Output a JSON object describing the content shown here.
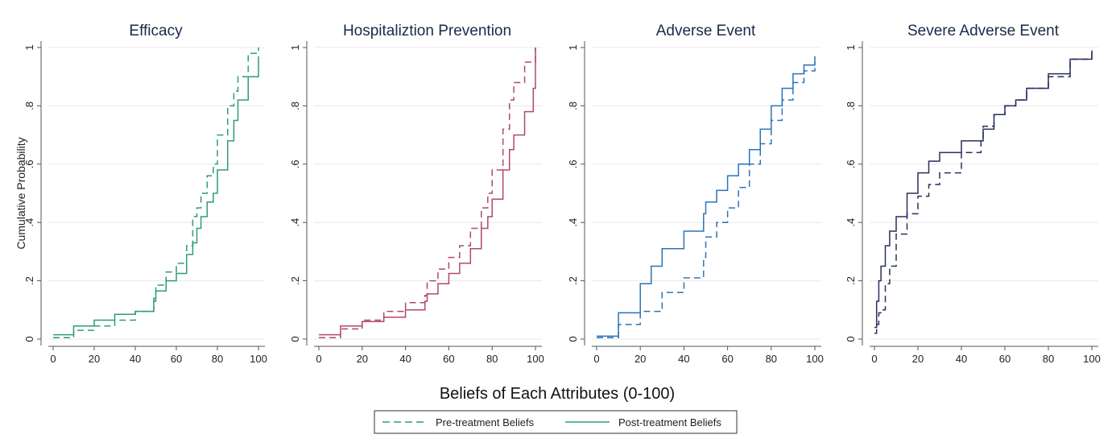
{
  "xlabel": "Beliefs of Each Attributes (0-100)",
  "ylabel": "Cumulative Probability",
  "legend": {
    "placement": "bottom-center",
    "entries": [
      {
        "name": "Pre-treatment Beliefs",
        "style": "dashed"
      },
      {
        "name": "Post-treatment Beliefs",
        "style": "solid"
      }
    ]
  },
  "chart_data": [
    {
      "type": "line",
      "title": "Efficacy",
      "color": "#2e9e72",
      "xlim": [
        0,
        100
      ],
      "ylim": [
        0,
        1
      ],
      "xticks": [
        "0",
        "20",
        "40",
        "60",
        "80",
        "100"
      ],
      "yticks": [
        "0",
        ".2",
        ".4",
        ".6",
        ".8",
        "1"
      ],
      "series": [
        {
          "name": "Pre-treatment Beliefs",
          "style": "dashed",
          "x": [
            0,
            10,
            20,
            30,
            40,
            49,
            50,
            55,
            60,
            65,
            68,
            70,
            72,
            75,
            78,
            80,
            85,
            88,
            90,
            95,
            100
          ],
          "y": [
            0.005,
            0.03,
            0.045,
            0.065,
            0.095,
            0.13,
            0.185,
            0.23,
            0.26,
            0.32,
            0.42,
            0.45,
            0.5,
            0.56,
            0.6,
            0.7,
            0.8,
            0.85,
            0.9,
            0.98,
            1.0
          ]
        },
        {
          "name": "Post-treatment Beliefs",
          "style": "solid",
          "x": [
            0,
            10,
            20,
            30,
            40,
            49,
            50,
            55,
            60,
            65,
            68,
            70,
            72,
            75,
            78,
            80,
            85,
            88,
            90,
            95,
            100
          ],
          "y": [
            0.015,
            0.045,
            0.065,
            0.085,
            0.095,
            0.14,
            0.165,
            0.2,
            0.225,
            0.29,
            0.33,
            0.38,
            0.42,
            0.47,
            0.5,
            0.58,
            0.68,
            0.75,
            0.82,
            0.9,
            0.97
          ]
        }
      ]
    },
    {
      "type": "line",
      "title": "Hospitaliztion Prevention",
      "color": "#b0486a",
      "xlim": [
        0,
        100
      ],
      "ylim": [
        0,
        1
      ],
      "xticks": [
        "0",
        "20",
        "40",
        "60",
        "80",
        "100"
      ],
      "yticks": [
        "0",
        ".2",
        ".4",
        ".6",
        ".8",
        "1"
      ],
      "series": [
        {
          "name": "Pre-treatment Beliefs",
          "style": "dashed",
          "x": [
            0,
            10,
            20,
            30,
            40,
            49,
            50,
            55,
            60,
            65,
            70,
            75,
            78,
            80,
            85,
            88,
            90,
            95,
            100
          ],
          "y": [
            0.005,
            0.035,
            0.065,
            0.095,
            0.125,
            0.15,
            0.2,
            0.24,
            0.28,
            0.32,
            0.38,
            0.45,
            0.5,
            0.58,
            0.72,
            0.82,
            0.88,
            0.95,
            1.0
          ]
        },
        {
          "name": "Post-treatment Beliefs",
          "style": "solid",
          "x": [
            0,
            10,
            20,
            30,
            40,
            49,
            50,
            55,
            60,
            65,
            70,
            75,
            78,
            80,
            85,
            88,
            90,
            95,
            99,
            100
          ],
          "y": [
            0.015,
            0.045,
            0.06,
            0.075,
            0.1,
            0.13,
            0.155,
            0.19,
            0.225,
            0.26,
            0.31,
            0.38,
            0.42,
            0.48,
            0.58,
            0.65,
            0.7,
            0.78,
            0.86,
            1.0
          ]
        }
      ]
    },
    {
      "type": "line",
      "title": "Adverse Event",
      "color": "#2a73b8",
      "xlim": [
        0,
        100
      ],
      "ylim": [
        0,
        1
      ],
      "xticks": [
        "0",
        "20",
        "40",
        "60",
        "80",
        "100"
      ],
      "yticks": [
        "0",
        ".2",
        ".4",
        ".6",
        ".8",
        "1"
      ],
      "series": [
        {
          "name": "Pre-treatment Beliefs",
          "style": "dashed",
          "x": [
            0,
            10,
            20,
            30,
            40,
            49,
            50,
            55,
            60,
            65,
            70,
            75,
            80,
            85,
            90,
            95,
            100
          ],
          "y": [
            0.005,
            0.05,
            0.095,
            0.16,
            0.21,
            0.28,
            0.35,
            0.4,
            0.45,
            0.52,
            0.6,
            0.67,
            0.75,
            0.82,
            0.88,
            0.92,
            0.95
          ]
        },
        {
          "name": "Post-treatment Beliefs",
          "style": "solid",
          "x": [
            0,
            10,
            20,
            25,
            30,
            40,
            49,
            50,
            55,
            60,
            65,
            70,
            75,
            80,
            85,
            90,
            95,
            100
          ],
          "y": [
            0.01,
            0.09,
            0.19,
            0.25,
            0.31,
            0.37,
            0.43,
            0.47,
            0.51,
            0.56,
            0.6,
            0.65,
            0.72,
            0.8,
            0.86,
            0.91,
            0.94,
            0.97
          ]
        }
      ]
    },
    {
      "type": "line",
      "title": "Severe Adverse Event",
      "color": "#2a2f5e",
      "xlim": [
        0,
        100
      ],
      "ylim": [
        0,
        1
      ],
      "xticks": [
        "0",
        "20",
        "40",
        "60",
        "80",
        "100"
      ],
      "yticks": [
        "0",
        ".2",
        ".4",
        ".6",
        ".8",
        "1"
      ],
      "series": [
        {
          "name": "Pre-treatment Beliefs",
          "style": "dashed",
          "x": [
            0,
            1,
            2,
            3,
            5,
            7,
            10,
            15,
            20,
            25,
            30,
            40,
            49,
            50,
            55,
            60,
            65,
            70,
            80,
            90,
            100
          ],
          "y": [
            0.02,
            0.05,
            0.09,
            0.1,
            0.19,
            0.25,
            0.36,
            0.43,
            0.49,
            0.53,
            0.57,
            0.64,
            0.69,
            0.73,
            0.77,
            0.8,
            0.82,
            0.86,
            0.9,
            0.96,
            0.99
          ]
        },
        {
          "name": "Post-treatment Beliefs",
          "style": "solid",
          "x": [
            0,
            1,
            2,
            3,
            5,
            7,
            10,
            15,
            20,
            25,
            30,
            40,
            50,
            55,
            60,
            65,
            70,
            80,
            90,
            100
          ],
          "y": [
            0.04,
            0.13,
            0.2,
            0.25,
            0.32,
            0.37,
            0.42,
            0.5,
            0.57,
            0.61,
            0.64,
            0.68,
            0.72,
            0.77,
            0.8,
            0.82,
            0.86,
            0.91,
            0.96,
            0.99
          ]
        }
      ]
    }
  ]
}
